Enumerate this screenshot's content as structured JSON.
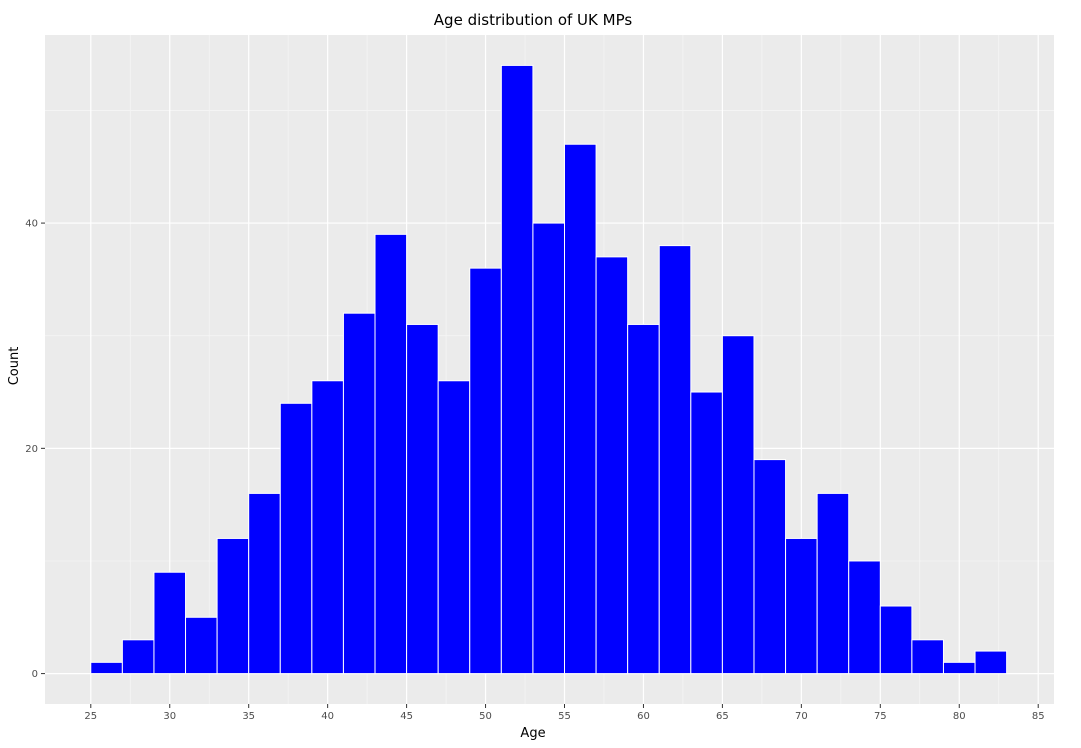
{
  "chart_data": {
    "type": "bar",
    "title": "Age distribution of UK MPs",
    "xlabel": "Age",
    "ylabel": "Count",
    "xlim": [
      22.1,
      86.0
    ],
    "ylim": [
      -2.7,
      56.7
    ],
    "x_ticks": [
      25,
      30,
      35,
      40,
      45,
      50,
      55,
      60,
      65,
      70,
      75,
      80,
      85
    ],
    "y_ticks": [
      0,
      20,
      40
    ],
    "grid": true,
    "legend": "none",
    "colors": {
      "bar_fill": "#0000ff",
      "bar_edge": "#ffffff",
      "panel_background": "#ebebeb",
      "grid_major": "#ffffff",
      "grid_minor": "#f5f5f5"
    },
    "bins": [
      {
        "x0": 25,
        "x1": 27,
        "count": 1
      },
      {
        "x0": 27,
        "x1": 29,
        "count": 3
      },
      {
        "x0": 29,
        "x1": 31,
        "count": 9
      },
      {
        "x0": 31,
        "x1": 33,
        "count": 5
      },
      {
        "x0": 33,
        "x1": 35,
        "count": 12
      },
      {
        "x0": 35,
        "x1": 37,
        "count": 16
      },
      {
        "x0": 37,
        "x1": 39,
        "count": 24
      },
      {
        "x0": 39,
        "x1": 41,
        "count": 26
      },
      {
        "x0": 41,
        "x1": 43,
        "count": 32
      },
      {
        "x0": 43,
        "x1": 45,
        "count": 39
      },
      {
        "x0": 45,
        "x1": 47,
        "count": 31
      },
      {
        "x0": 47,
        "x1": 49,
        "count": 26
      },
      {
        "x0": 49,
        "x1": 51,
        "count": 36
      },
      {
        "x0": 51,
        "x1": 53,
        "count": 54
      },
      {
        "x0": 53,
        "x1": 55,
        "count": 40
      },
      {
        "x0": 55,
        "x1": 57,
        "count": 47
      },
      {
        "x0": 57,
        "x1": 59,
        "count": 37
      },
      {
        "x0": 59,
        "x1": 61,
        "count": 31
      },
      {
        "x0": 61,
        "x1": 63,
        "count": 38
      },
      {
        "x0": 63,
        "x1": 65,
        "count": 25
      },
      {
        "x0": 65,
        "x1": 67,
        "count": 30
      },
      {
        "x0": 67,
        "x1": 69,
        "count": 19
      },
      {
        "x0": 69,
        "x1": 71,
        "count": 12
      },
      {
        "x0": 71,
        "x1": 73,
        "count": 16
      },
      {
        "x0": 73,
        "x1": 75,
        "count": 10
      },
      {
        "x0": 75,
        "x1": 77,
        "count": 6
      },
      {
        "x0": 77,
        "x1": 79,
        "count": 3
      },
      {
        "x0": 79,
        "x1": 81,
        "count": 1
      },
      {
        "x0": 81,
        "x1": 83,
        "count": 2
      }
    ]
  }
}
